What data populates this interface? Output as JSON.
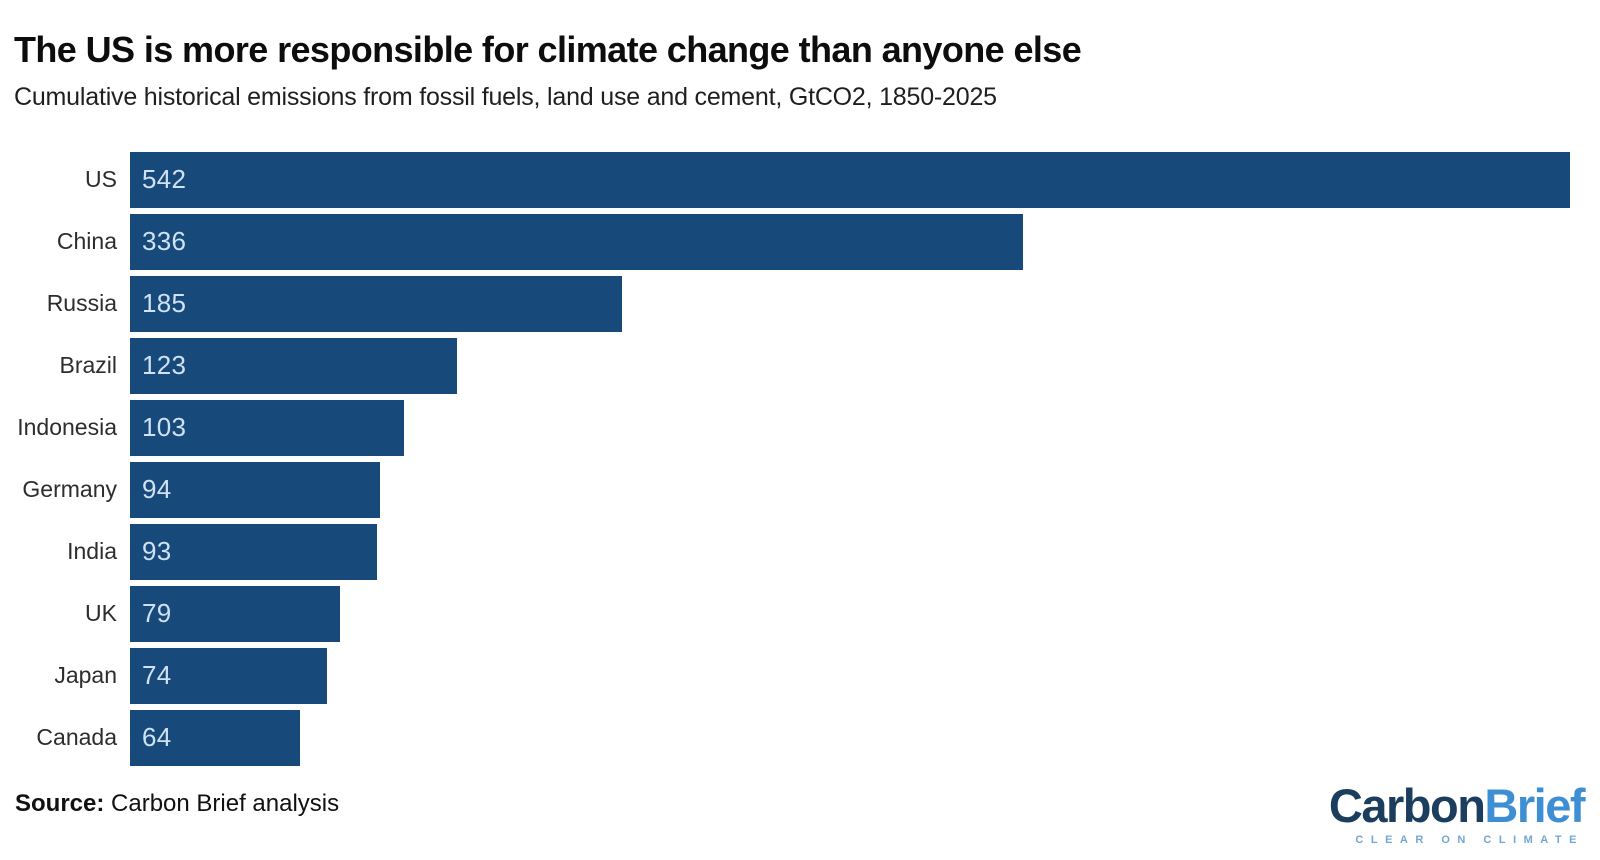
{
  "chart_data": {
    "type": "bar",
    "orientation": "horizontal",
    "title": "The US is more responsible for climate change than anyone else",
    "subtitle": "Cumulative historical emissions from fossil fuels, land use and cement, GtCO2, 1850-2025",
    "categories": [
      "US",
      "China",
      "Russia",
      "Brazil",
      "Indonesia",
      "Germany",
      "India",
      "UK",
      "Japan",
      "Canada"
    ],
    "values": [
      542,
      336,
      185,
      123,
      103,
      94,
      93,
      79,
      74,
      64
    ],
    "units": "GtCO2",
    "xlim": [
      0,
      542
    ],
    "grid": false,
    "legend": false,
    "axis_visible": false,
    "value_labels": "inside-left",
    "bar_color": "#17497a",
    "value_label_color": "#cfe1f2",
    "category_label_color": "#2d2d2d"
  },
  "footer": {
    "source_label": "Source:",
    "source_text": " Carbon Brief analysis"
  },
  "logo": {
    "part1": "Carbon",
    "part2": "Brief",
    "part1_color": "#1c3e5e",
    "part2_color": "#3e8ed3",
    "tagline": "CLEAR ON CLIMATE",
    "tagline_color": "#72a8d5"
  }
}
